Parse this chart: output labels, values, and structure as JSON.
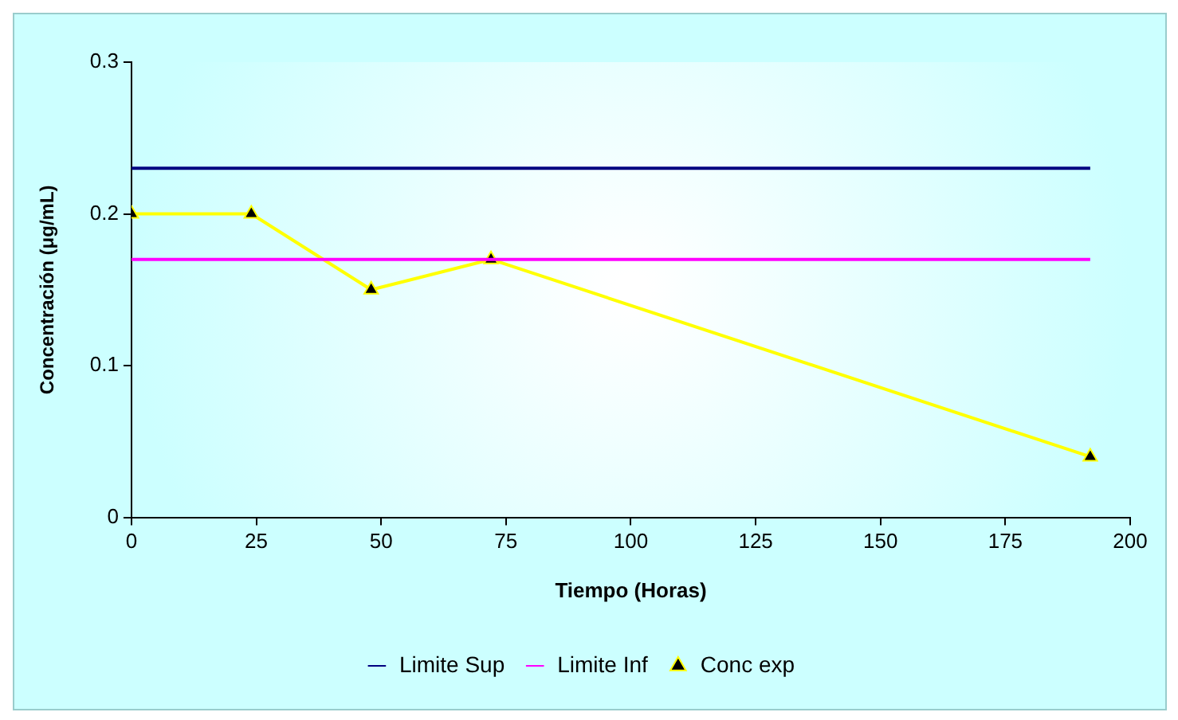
{
  "chart_data": {
    "type": "line",
    "xlabel": "Tiempo (Horas)",
    "ylabel": "Concentración (μg/mL)",
    "x": [
      0,
      24,
      48,
      72,
      192
    ],
    "series": [
      {
        "name": "Limite Sup",
        "color": "#000080",
        "values": [
          0.23,
          0.23,
          0.23,
          0.23,
          0.23
        ],
        "marker": "none"
      },
      {
        "name": "Limite Inf",
        "color": "#ff00ff",
        "values": [
          0.17,
          0.17,
          0.17,
          0.17,
          0.17
        ],
        "marker": "none"
      },
      {
        "name": "Conc exp",
        "color": "#ffff00",
        "values": [
          0.2,
          0.2,
          0.15,
          0.17,
          0.04
        ],
        "marker": "triangle"
      }
    ],
    "xlim": [
      0,
      200
    ],
    "xticks": [
      0,
      25,
      50,
      75,
      100,
      125,
      150,
      175,
      200
    ],
    "ylim": [
      0,
      0.3
    ],
    "yticks": [
      0,
      0.1,
      0.2,
      0.3
    ],
    "grid": false,
    "legend": "bottom",
    "line_style": "solid"
  }
}
